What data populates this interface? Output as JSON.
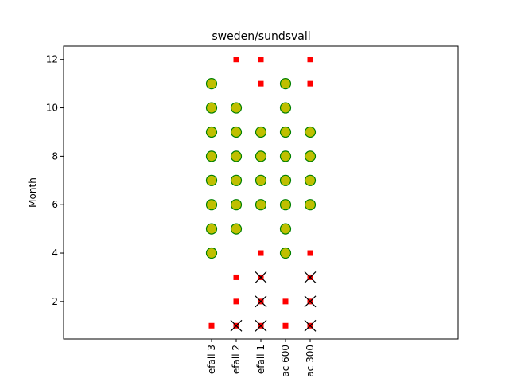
{
  "chart_data": {
    "type": "scatter",
    "title": "sweden/sundsvall",
    "xlabel": "",
    "ylabel": "Month",
    "categories": [
      "efall 3",
      "efall 2",
      "efall 1",
      "ac 600",
      "ac 300"
    ],
    "xlim": [
      -6,
      10
    ],
    "ylim": [
      0.45,
      12.55
    ],
    "yticks": [
      2,
      4,
      6,
      8,
      10,
      12
    ],
    "grid": false,
    "legend": "none",
    "colors": {
      "circle_fill": "#bfbf00",
      "circle_edge": "#008000",
      "square": "#ff0000",
      "cross": "#000000"
    },
    "series": [
      {
        "marker": "circle",
        "points": [
          {
            "x": 0,
            "months": [
              4,
              5,
              6,
              7,
              8,
              9,
              10,
              11
            ]
          },
          {
            "x": 1,
            "months": [
              5,
              6,
              7,
              8,
              9,
              10
            ]
          },
          {
            "x": 2,
            "months": [
              6,
              7,
              8,
              9
            ]
          },
          {
            "x": 3,
            "months": [
              4,
              5,
              6,
              7,
              8,
              9,
              10,
              11
            ]
          },
          {
            "x": 4,
            "months": [
              6,
              7,
              8,
              9
            ]
          }
        ]
      },
      {
        "marker": "square",
        "points": [
          {
            "x": 0,
            "months": [
              1
            ]
          },
          {
            "x": 1,
            "months": [
              1,
              2,
              3,
              12
            ]
          },
          {
            "x": 2,
            "months": [
              1,
              2,
              3,
              4,
              11,
              12
            ]
          },
          {
            "x": 3,
            "months": [
              1,
              2
            ]
          },
          {
            "x": 4,
            "months": [
              1,
              2,
              3,
              4,
              11,
              12
            ]
          }
        ]
      },
      {
        "marker": "x",
        "points": [
          {
            "x": 1,
            "months": [
              1
            ]
          },
          {
            "x": 2,
            "months": [
              1,
              2,
              3
            ]
          },
          {
            "x": 4,
            "months": [
              1,
              2,
              3
            ]
          }
        ]
      }
    ]
  }
}
